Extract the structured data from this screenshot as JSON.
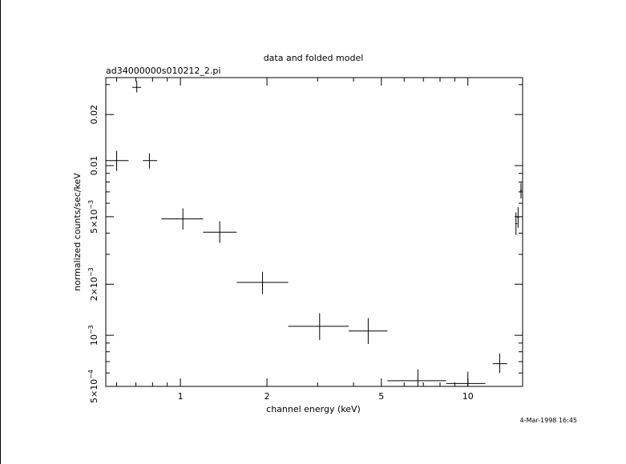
{
  "page": {
    "timestamp": "4-Mar-1998 16:45"
  },
  "chart_data": {
    "type": "scatter",
    "title": "data and folded model",
    "subtitle": "ad34000000s010212_2.pi",
    "xlabel": "channel energy (keV)",
    "ylabel": "normalized counts/sec/keV",
    "xscale": "log",
    "yscale": "log",
    "xlim": [
      0.55,
      15.5
    ],
    "ylim": [
      0.0005,
      0.033
    ],
    "grid": false,
    "x_ticks": [
      {
        "value": 1,
        "label": "1"
      },
      {
        "value": 2,
        "label": "2"
      },
      {
        "value": 5,
        "label": "5"
      },
      {
        "value": 10,
        "label": "10"
      }
    ],
    "y_ticks": [
      {
        "value": 0.0005,
        "label": "5×10",
        "exp": "−4"
      },
      {
        "value": 0.001,
        "label": "10",
        "exp": "−3"
      },
      {
        "value": 0.002,
        "label": "2×10",
        "exp": "−3"
      },
      {
        "value": 0.005,
        "label": "5×10",
        "exp": "−3"
      },
      {
        "value": 0.01,
        "label": "0.01",
        "exp": ""
      },
      {
        "value": 0.02,
        "label": "0.02",
        "exp": ""
      }
    ],
    "series": [
      {
        "points": [
          {
            "x": 0.6,
            "xlo": 0.55,
            "xhi": 0.66,
            "y": 0.0107,
            "ylo": 0.0093,
            "yhi": 0.0122
          },
          {
            "x": 0.705,
            "xlo": 0.68,
            "xhi": 0.73,
            "y": 0.0289,
            "ylo": 0.027,
            "yhi": 0.0315
          },
          {
            "x": 0.78,
            "xlo": 0.74,
            "xhi": 0.83,
            "y": 0.0107,
            "ylo": 0.0096,
            "yhi": 0.0118
          },
          {
            "x": 1.02,
            "xlo": 0.86,
            "xhi": 1.2,
            "y": 0.00485,
            "ylo": 0.0042,
            "yhi": 0.0056
          },
          {
            "x": 1.37,
            "xlo": 1.2,
            "xhi": 1.57,
            "y": 0.00405,
            "ylo": 0.0035,
            "yhi": 0.0047
          },
          {
            "x": 1.93,
            "xlo": 1.57,
            "xhi": 2.37,
            "y": 0.00205,
            "ylo": 0.00175,
            "yhi": 0.00237
          },
          {
            "x": 3.05,
            "xlo": 2.37,
            "xhi": 3.85,
            "y": 0.00113,
            "ylo": 0.00094,
            "yhi": 0.00135
          },
          {
            "x": 4.5,
            "xlo": 3.85,
            "xhi": 5.25,
            "y": 0.00106,
            "ylo": 0.00089,
            "yhi": 0.00126
          },
          {
            "x": 6.7,
            "xlo": 5.25,
            "xhi": 8.4,
            "y": 0.00054,
            "ylo": 0.00046,
            "yhi": 0.00063
          },
          {
            "x": 10.0,
            "xlo": 8.4,
            "xhi": 11.5,
            "y": 0.00052,
            "ylo": 0.00045,
            "yhi": 0.00061
          },
          {
            "x": 12.9,
            "xlo": 12.2,
            "xhi": 13.7,
            "y": 0.00068,
            "ylo": 0.0006,
            "yhi": 0.00078
          },
          {
            "x": 14.7,
            "xlo": 14.6,
            "xhi": 14.85,
            "y": 0.00455,
            "ylo": 0.0039,
            "yhi": 0.0053
          },
          {
            "x": 14.95,
            "xlo": 14.85,
            "xhi": 15.05,
            "y": 0.00495,
            "ylo": 0.0043,
            "yhi": 0.0057
          },
          {
            "x": 15.3,
            "xlo": 15.2,
            "xhi": 15.4,
            "y": 0.00715,
            "ylo": 0.0064,
            "yhi": 0.0079
          }
        ]
      }
    ]
  }
}
